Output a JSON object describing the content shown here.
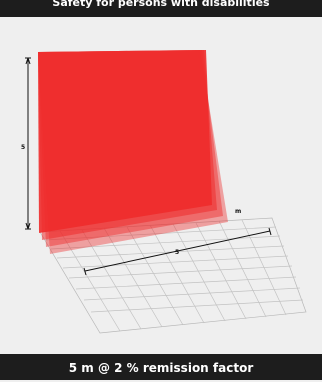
{
  "header": {
    "title": "Safety for persons with disabilities"
  },
  "diagram": {
    "height_label": "5",
    "width_label": "5",
    "unit_label": "m",
    "field_color": "#ee2b2b"
  },
  "footer": {
    "caption": "5 m  @ 2 % remission factor"
  }
}
